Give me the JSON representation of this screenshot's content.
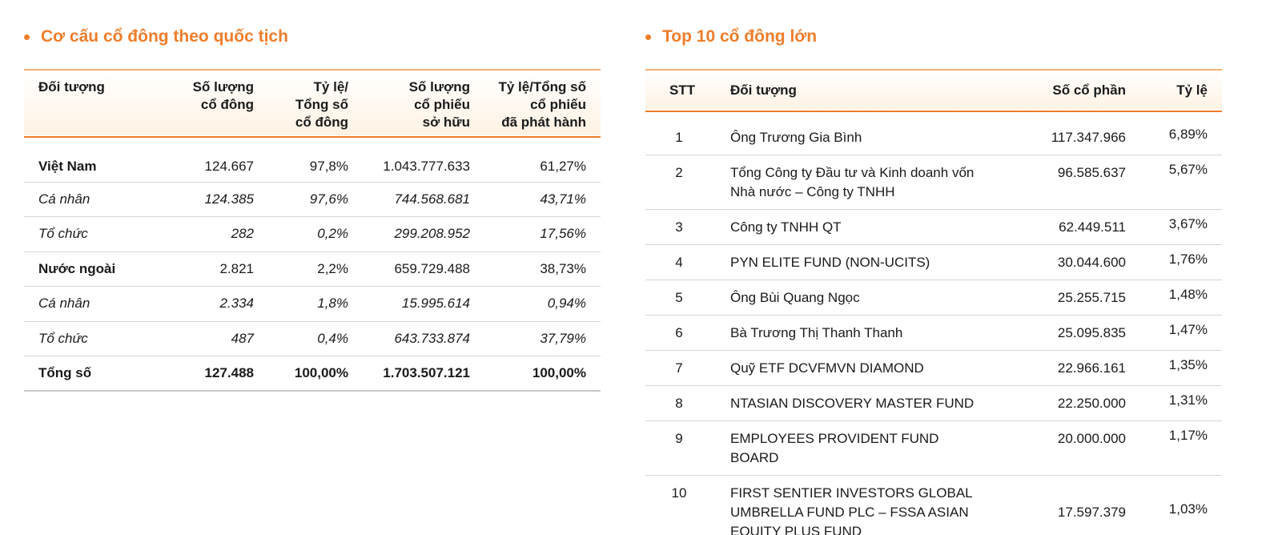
{
  "left": {
    "title": "Cơ cấu cổ đông theo quốc tịch",
    "headers": [
      "Đối tượng",
      "Số lượng\ncổ đông",
      "Tỷ lệ/\nTổng số\ncổ đông",
      "Số lượng\ncổ phiếu\nsở hữu",
      "Tỷ lệ/Tổng số\ncổ phiếu\nđã phát hành"
    ],
    "rows": [
      {
        "type": "group",
        "cells": [
          "Việt Nam",
          "124.667",
          "97,8%",
          "1.043.777.633",
          "61,27%"
        ]
      },
      {
        "type": "sub",
        "cells": [
          "Cá nhân",
          "124.385",
          "97,6%",
          "744.568.681",
          "43,71%"
        ]
      },
      {
        "type": "sub",
        "cells": [
          "Tổ chức",
          "282",
          "0,2%",
          "299.208.952",
          "17,56%"
        ]
      },
      {
        "type": "group",
        "cells": [
          "Nước ngoài",
          "2.821",
          "2,2%",
          "659.729.488",
          "38,73%"
        ]
      },
      {
        "type": "sub",
        "cells": [
          "Cá nhân",
          "2.334",
          "1,8%",
          "15.995.614",
          "0,94%"
        ]
      },
      {
        "type": "sub",
        "cells": [
          "Tổ chức",
          "487",
          "0,4%",
          "643.733.874",
          "37,79%"
        ]
      },
      {
        "type": "total",
        "cells": [
          "Tổng số",
          "127.488",
          "100,00%",
          "1.703.507.121",
          "100,00%"
        ]
      }
    ]
  },
  "right": {
    "title": "Top 10 cổ đông lớn",
    "headers": [
      "STT",
      "Đối tượng",
      "Số cổ phần",
      "Tỷ lệ"
    ],
    "rows": [
      [
        "1",
        "Ông Trương Gia Bình",
        "117.347.966",
        "6,89%"
      ],
      [
        "2",
        "Tổng Công ty Đầu tư và Kinh doanh vốn\nNhà nước – Công ty TNHH",
        "96.585.637",
        "5,67%"
      ],
      [
        "3",
        "Công ty TNHH QT",
        "62.449.511",
        "3,67%"
      ],
      [
        "4",
        "PYN ELITE FUND (NON-UCITS)",
        "30.044.600",
        "1,76%"
      ],
      [
        "5",
        "Ông Bùi Quang Ngọc",
        "25.255.715",
        "1,48%"
      ],
      [
        "6",
        "Bà Trương Thị Thanh Thanh",
        "25.095.835",
        "1,47%"
      ],
      [
        "7",
        "Quỹ ETF DCVFMVN DIAMOND",
        "22.966.161",
        "1,35%"
      ],
      [
        "8",
        "NTASIAN DISCOVERY MASTER FUND",
        "22.250.000",
        "1,31%"
      ],
      [
        "9",
        "EMPLOYEES PROVIDENT FUND BOARD",
        "20.000.000",
        "1,17%"
      ],
      [
        "10",
        "FIRST SENTIER INVESTORS GLOBAL\nUMBRELLA FUND PLC – FSSA ASIAN\nEQUITY PLUS FUND",
        "17.597.379",
        "1,03%"
      ]
    ]
  }
}
